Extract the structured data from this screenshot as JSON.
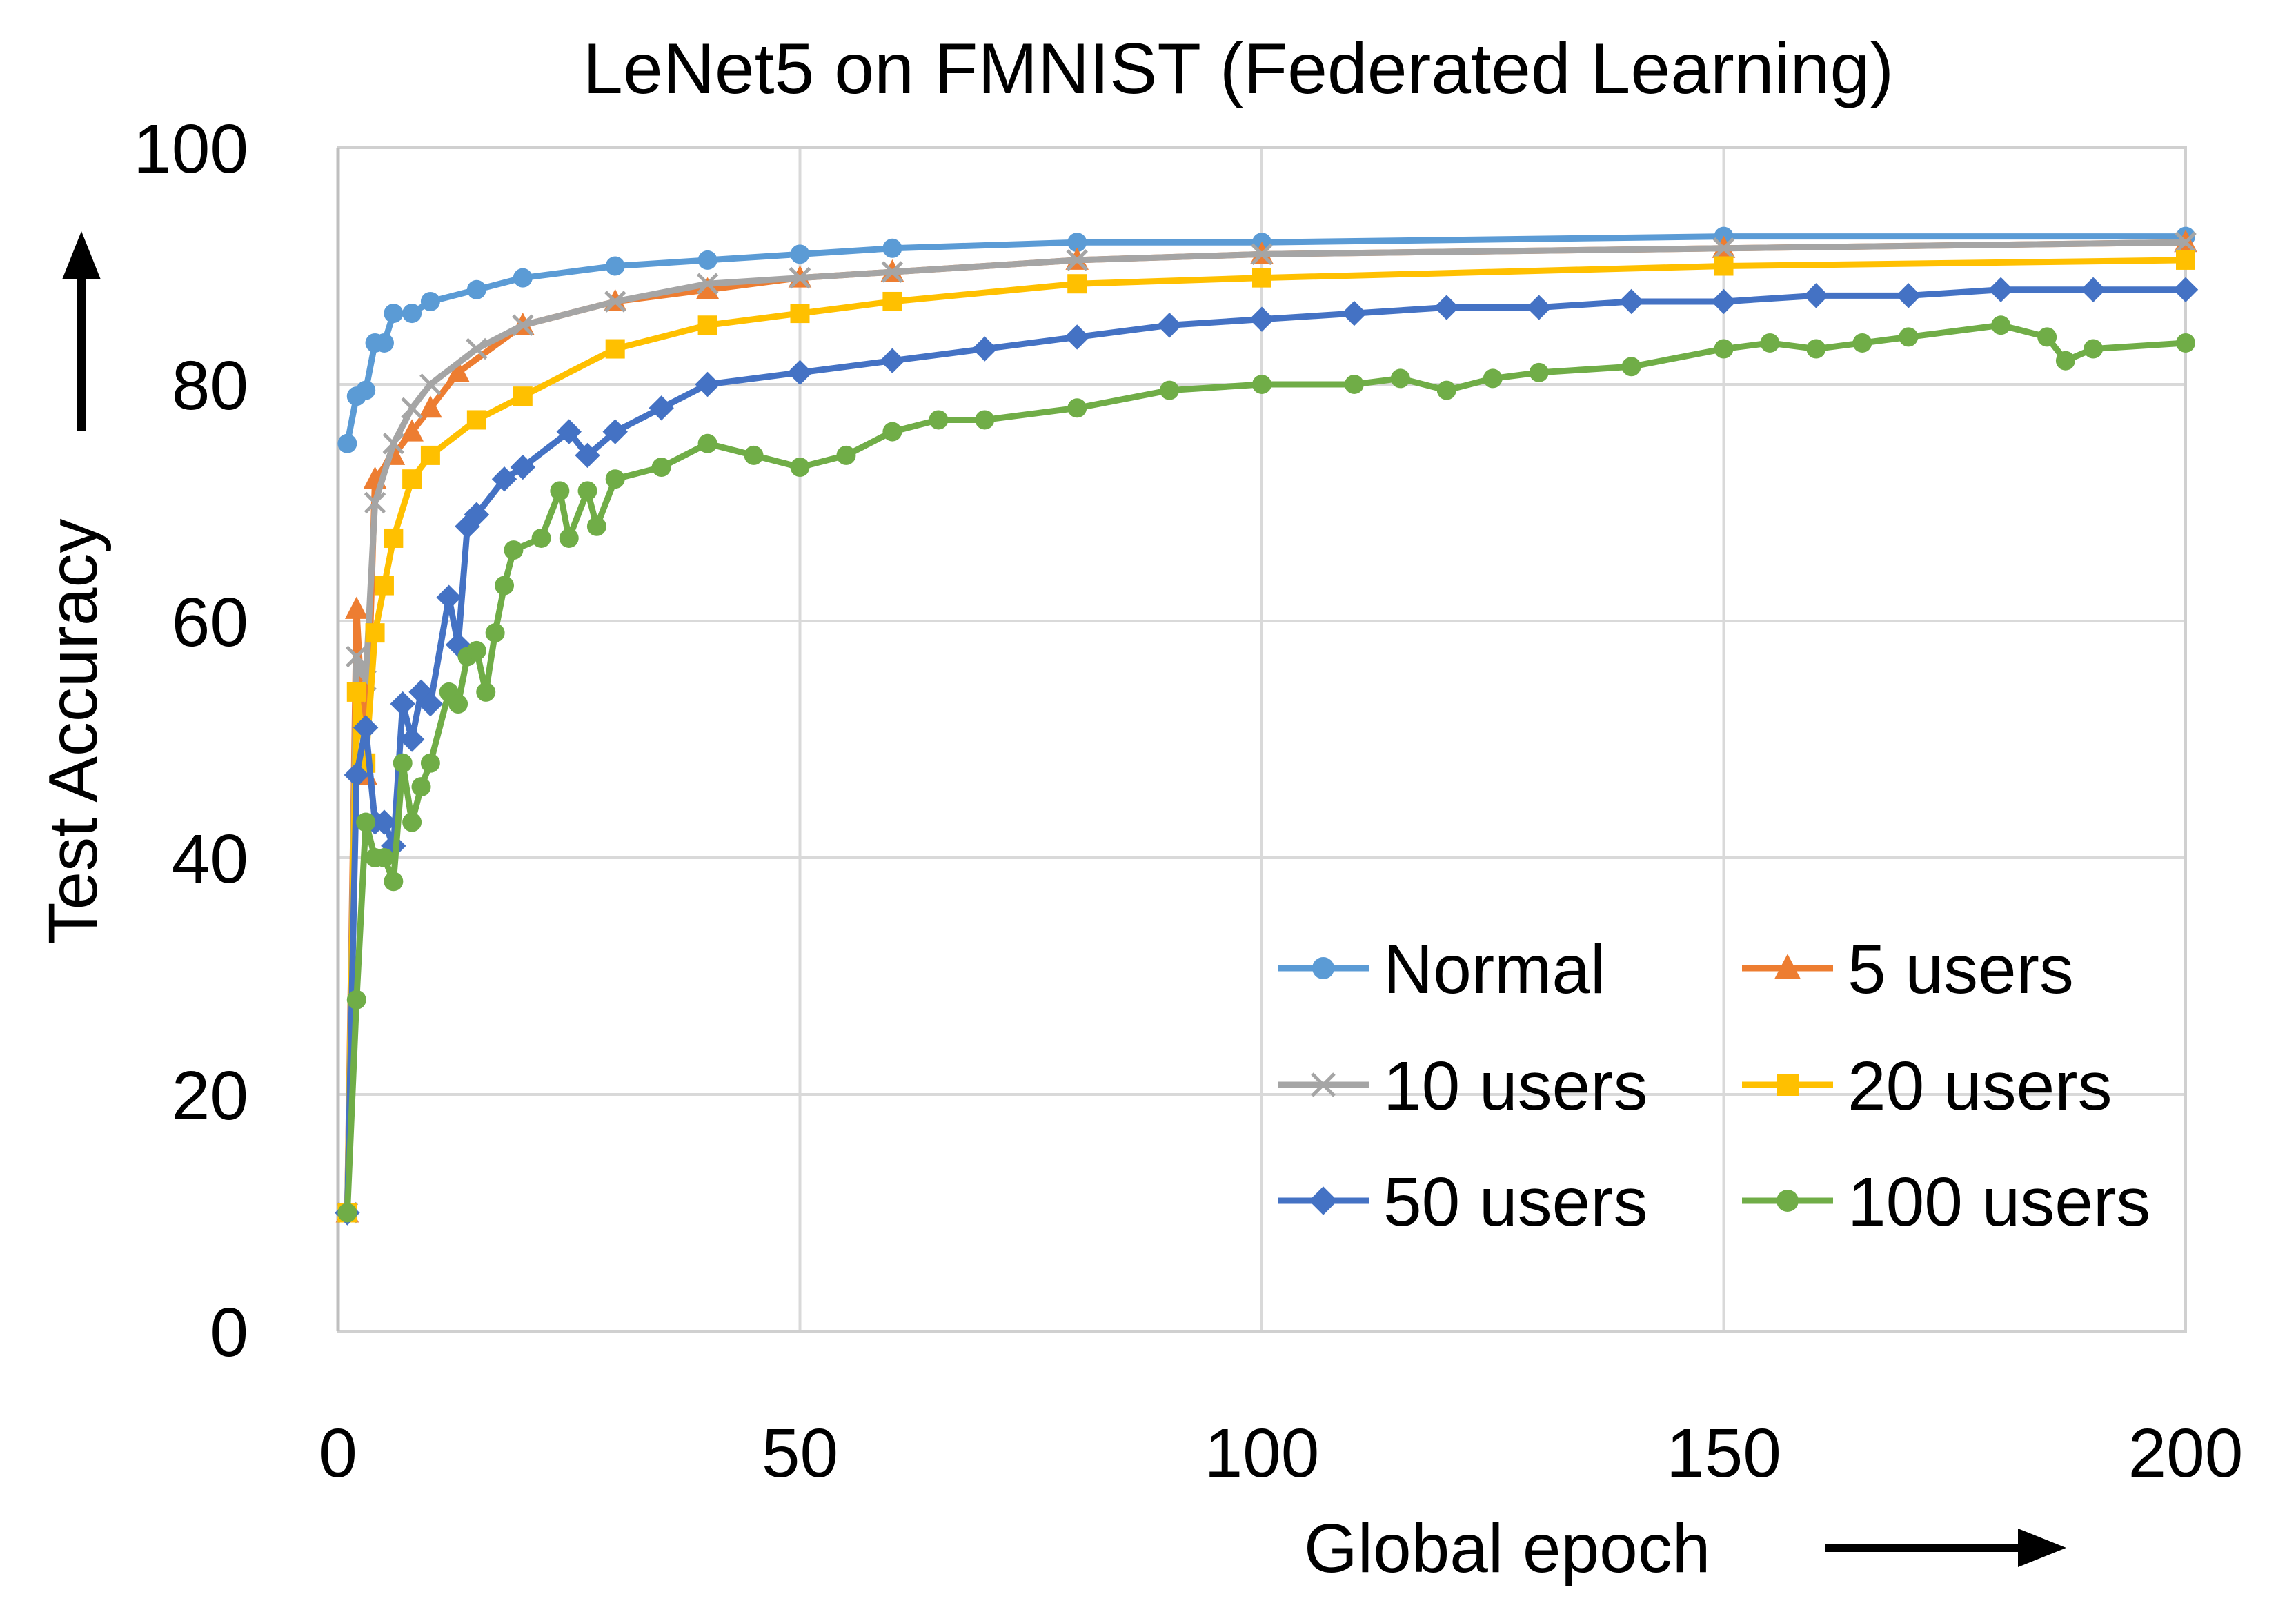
{
  "chart_data": {
    "type": "line",
    "title": "LeNet5 on FMNIST (Federated Learning)",
    "xlabel": "Global epoch",
    "ylabel": "Test Accuracy",
    "xlim": [
      0,
      200
    ],
    "ylim": [
      0,
      100
    ],
    "xticks": [
      0,
      50,
      100,
      150,
      200
    ],
    "yticks": [
      0,
      20,
      40,
      60,
      80,
      100
    ],
    "grid": true,
    "legend_placement": "bottom-right",
    "series": [
      {
        "name": "Normal",
        "color": "#5B9BD5",
        "marker": "circle",
        "x": [
          1,
          2,
          3,
          4,
          5,
          6,
          8,
          10,
          15,
          20,
          30,
          40,
          50,
          60,
          80,
          100,
          150,
          200
        ],
        "y": [
          75,
          79,
          79.5,
          83.5,
          83.5,
          86,
          86,
          87,
          88,
          89,
          90,
          90.5,
          91,
          91.5,
          92,
          92,
          92.5,
          92.5
        ]
      },
      {
        "name": "5 users",
        "color": "#ED7D31",
        "marker": "triangle",
        "x": [
          1,
          2,
          3,
          4,
          6,
          8,
          10,
          13,
          20,
          30,
          40,
          50,
          60,
          80,
          100,
          150,
          200
        ],
        "y": [
          10,
          61,
          47,
          72,
          74,
          76,
          78,
          81,
          85,
          87,
          88,
          89,
          89.5,
          90.5,
          91,
          91.5,
          92
        ]
      },
      {
        "name": "10 users",
        "color": "#A5A5A5",
        "marker": "x",
        "x": [
          1,
          2,
          3,
          4,
          6,
          8,
          10,
          15,
          20,
          30,
          40,
          50,
          60,
          80,
          100,
          150,
          200
        ],
        "y": [
          10,
          57,
          55,
          70,
          75,
          78,
          80,
          83,
          85,
          87,
          88.5,
          89,
          89.5,
          90.5,
          91,
          91.5,
          92
        ]
      },
      {
        "name": "20 users",
        "color": "#FFC000",
        "marker": "square",
        "x": [
          1,
          2,
          3,
          4,
          5,
          6,
          8,
          10,
          15,
          20,
          30,
          40,
          50,
          60,
          80,
          100,
          150,
          200
        ],
        "y": [
          10,
          54,
          48,
          59,
          63,
          67,
          72,
          74,
          77,
          79,
          83,
          85,
          86,
          87,
          88.5,
          89,
          90,
          90.5
        ]
      },
      {
        "name": "50 users",
        "color": "#4472C4",
        "marker": "diamond",
        "x": [
          1,
          2,
          3,
          4,
          5,
          6,
          7,
          8,
          9,
          10,
          12,
          13,
          14,
          15,
          18,
          20,
          25,
          27,
          30,
          35,
          40,
          50,
          60,
          70,
          80,
          90,
          100,
          110,
          120,
          130,
          140,
          150,
          160,
          170,
          180,
          190,
          200
        ],
        "y": [
          10,
          47,
          51,
          43,
          43,
          41,
          53,
          50,
          54,
          53,
          62,
          58,
          68,
          69,
          72,
          73,
          76,
          74,
          76,
          78,
          80,
          81,
          82,
          83,
          84,
          85,
          85.5,
          86,
          86.5,
          86.5,
          87,
          87,
          87.5,
          87.5,
          88,
          88,
          88
        ]
      },
      {
        "name": "100 users",
        "color": "#70AD47",
        "marker": "circle",
        "x": [
          1,
          2,
          3,
          4,
          5,
          6,
          7,
          8,
          9,
          10,
          12,
          13,
          14,
          15,
          16,
          17,
          18,
          19,
          22,
          24,
          25,
          27,
          28,
          30,
          35,
          40,
          45,
          50,
          55,
          60,
          65,
          70,
          80,
          90,
          100,
          110,
          115,
          120,
          125,
          130,
          140,
          150,
          155,
          160,
          165,
          170,
          180,
          185,
          187,
          190,
          200
        ],
        "y": [
          10,
          28,
          43,
          40,
          40,
          38,
          48,
          43,
          46,
          48,
          54,
          53,
          57,
          57.5,
          54,
          59,
          63,
          66,
          67,
          71,
          67,
          71,
          68,
          72,
          73,
          75,
          74,
          73,
          74,
          76,
          77,
          77,
          78,
          79.5,
          80,
          80,
          80.5,
          79.5,
          80.5,
          81,
          81.5,
          83,
          83.5,
          83,
          83.5,
          84,
          85,
          84,
          82,
          83,
          83.5
        ]
      }
    ]
  }
}
